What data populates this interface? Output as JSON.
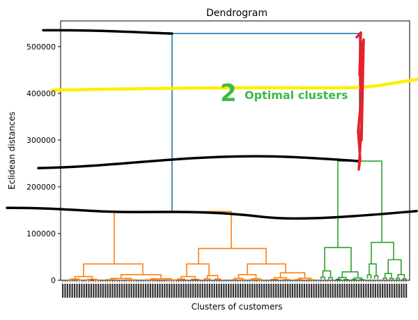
{
  "chart_data": {
    "type": "dendrogram",
    "title": "Dendrogram",
    "xlabel": "Clusters of customers",
    "ylabel": "Eclidean distances",
    "ylim": [
      0,
      555000
    ],
    "y_ticks": [
      0,
      100000,
      200000,
      300000,
      400000,
      500000
    ],
    "y_tick_labels": [
      "0",
      "100000",
      "200000",
      "300000",
      "400000",
      "500000"
    ],
    "grid": false,
    "colors": {
      "cluster_1": "#ff7f0e",
      "cluster_2": "#2ca02c",
      "root": "#1f77b4",
      "threshold_line": "#ffee00",
      "cut_marks": "#000000",
      "scribble": "#e8202a",
      "annotation": "#3cb94a"
    },
    "merges": {
      "root": 528000,
      "cluster_1": 147000,
      "cluster_2": 255000,
      "cluster_1_sub": [
        68000,
        35000
      ],
      "cluster_2_sub": [
        70000,
        81000
      ]
    },
    "threshold_line_y": 410000,
    "cut_lines_y": [
      535000,
      262000,
      145000
    ],
    "annotation": {
      "number": "2",
      "text": "Optimal clusters"
    }
  }
}
